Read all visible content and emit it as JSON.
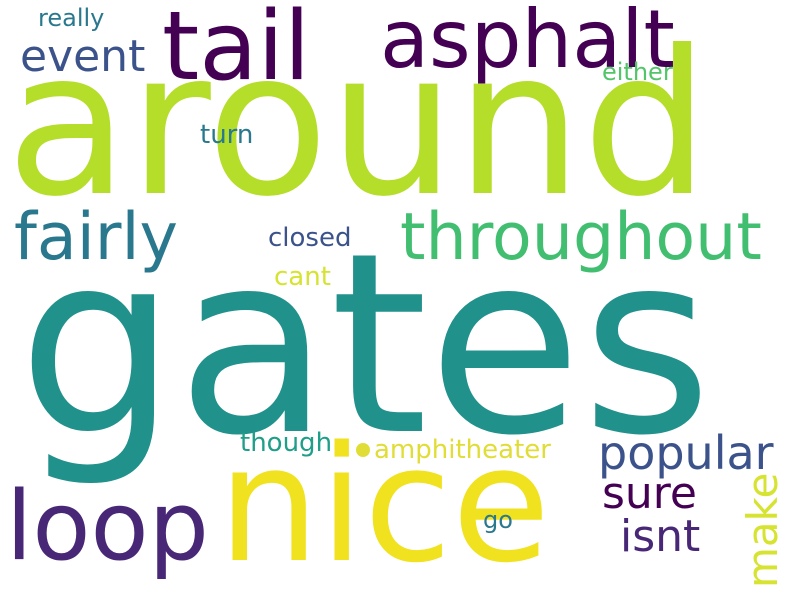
{
  "words": {
    "gates": "gates",
    "around": "around",
    "nice": "nice",
    "loop": "loop",
    "tail": "tail",
    "asphalt": "asphalt",
    "throughout": "throughout",
    "fairly": "fairly",
    "popular": "popular",
    "sure": "sure",
    "isnt": "isnt",
    "event": "event",
    "make": "make",
    "amphitheater": "amphitheater",
    "though": "though",
    "closed": "closed",
    "cant": "cant",
    "turn": "turn",
    "really": "really",
    "either": "either",
    "go": "go"
  },
  "colors": {
    "teal_dark": "#21918c",
    "purple": "#440154",
    "indigo": "#482777",
    "blue": "#3b528b",
    "lime": "#b5de2b",
    "yellow": "#f0e21e",
    "green": "#42be71",
    "teal_mid": "#2a788e",
    "teal": "#1f9e89",
    "mustard": "#e1dd37"
  }
}
